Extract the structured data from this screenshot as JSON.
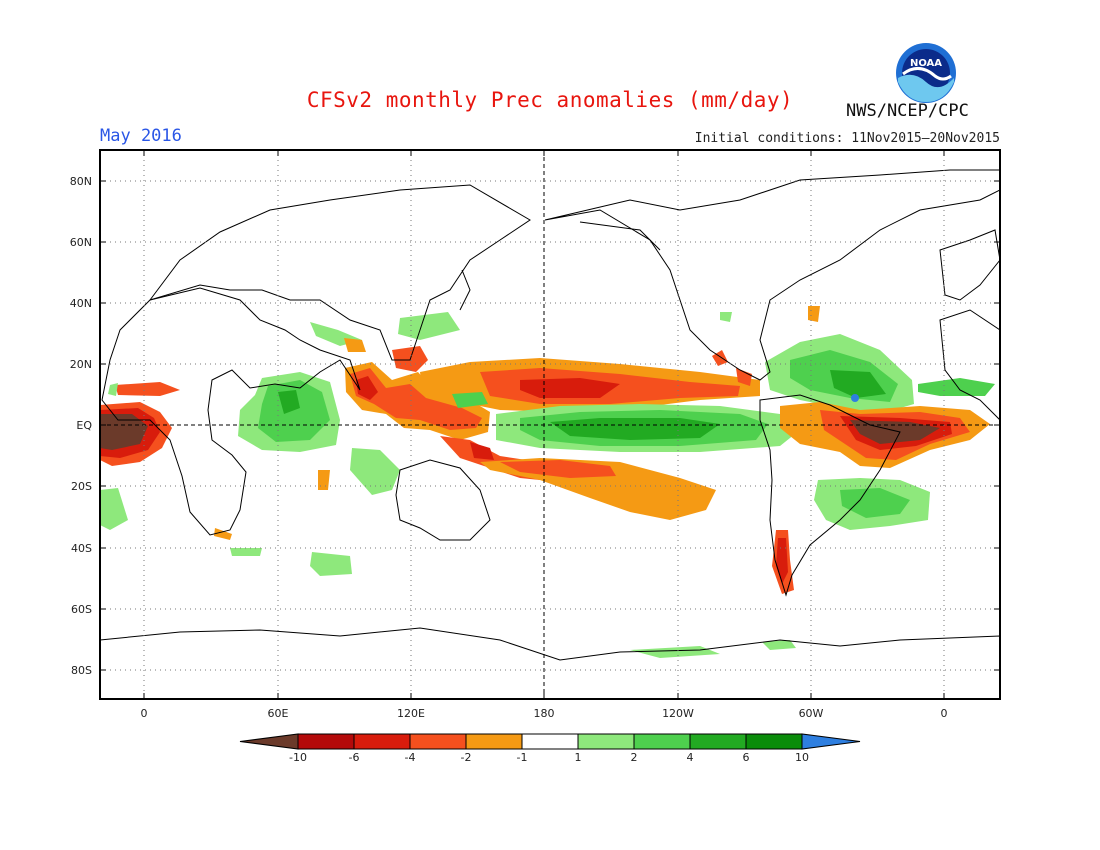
{
  "header": {
    "title": "CFSv2 monthly Prec anomalies (mm/day)",
    "period": "May 2016",
    "initial_conditions": "Initial conditions: 11Nov2015—20Nov2015",
    "agency": "NWS/NCEP/CPC",
    "logo_text": "NOAA"
  },
  "map": {
    "lat_labels": [
      "80N",
      "60N",
      "40N",
      "20N",
      "EQ",
      "20S",
      "40S",
      "60S",
      "80S"
    ],
    "lon_labels": [
      "0",
      "60E",
      "120E",
      "180",
      "120W",
      "60W",
      "0"
    ]
  },
  "colorbar": {
    "labels": [
      "-10",
      "-6",
      "-4",
      "-2",
      "-1",
      "1",
      "2",
      "4",
      "6",
      "10"
    ],
    "colors": [
      "#6b3a2a",
      "#b40a0a",
      "#d81c0c",
      "#f5501e",
      "#f59a14",
      "#ffffff",
      "#8ee87c",
      "#4ed04e",
      "#22aa22",
      "#0a8c0a",
      "#2e7fe0"
    ]
  },
  "colors": {
    "title": "#e8150e",
    "period": "#2a56e6",
    "dry_extreme": "#6b3a2a",
    "wet_extreme": "#2e7fe0"
  }
}
